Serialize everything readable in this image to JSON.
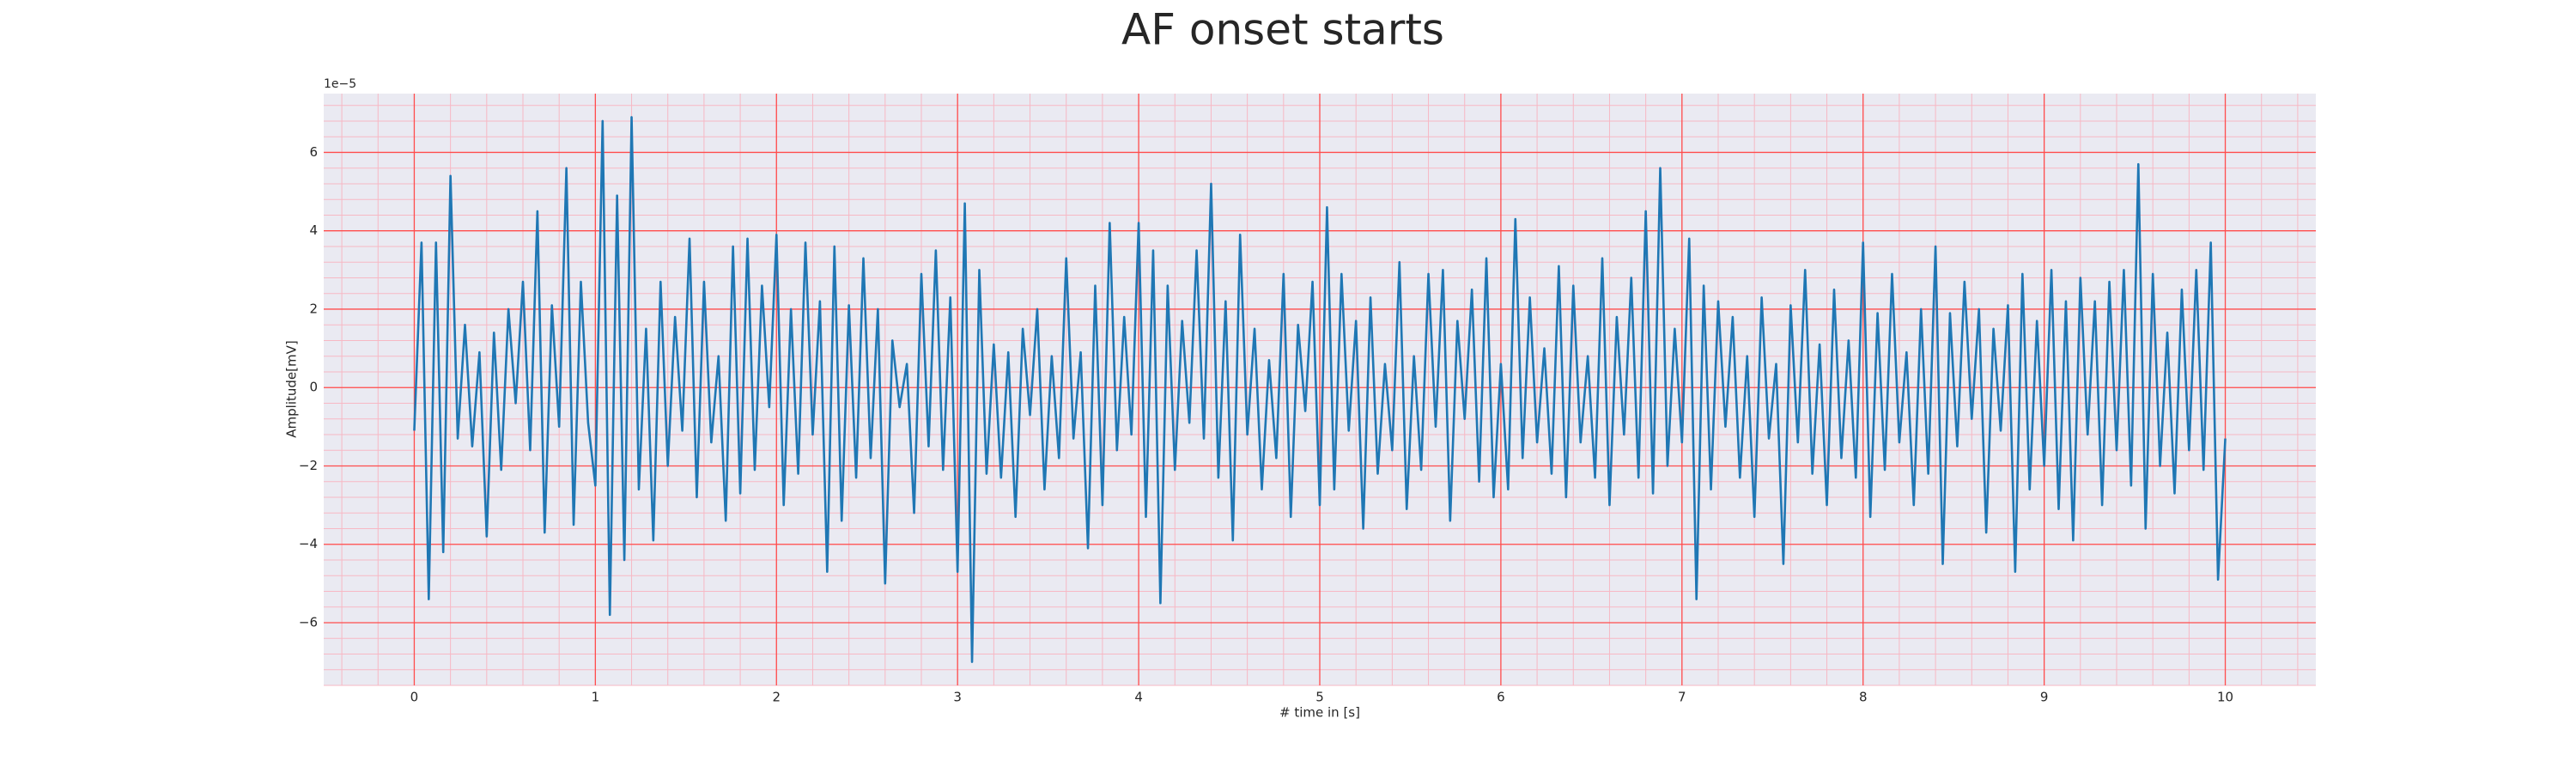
{
  "chart_data": {
    "type": "line",
    "title": "AF onset starts",
    "x_label": "# time in [s]",
    "y_label": "Amplitude[mV]",
    "y_offset_label": "1e−5",
    "grid": true,
    "minor_grid": true,
    "background": "#eaeaf2",
    "grid_color": "#ff4d4d",
    "minor_grid_color": "#f7b8c4",
    "xlim": [
      -0.5,
      10.5
    ],
    "ylim": [
      -7.6,
      7.5
    ],
    "xticks": [
      0,
      1,
      2,
      3,
      4,
      5,
      6,
      7,
      8,
      9,
      10
    ],
    "yticks": [
      {
        "value": -6,
        "label": "−6"
      },
      {
        "value": -4,
        "label": "−4"
      },
      {
        "value": -2,
        "label": "−2"
      },
      0,
      2,
      4,
      6
    ],
    "x": [
      0,
      0.04,
      0.08,
      0.12,
      0.16,
      0.2,
      0.24,
      0.28,
      0.32,
      0.36,
      0.4,
      0.44,
      0.48,
      0.52,
      0.56,
      0.6,
      0.64,
      0.68,
      0.72,
      0.76,
      0.8,
      0.84,
      0.88,
      0.92,
      0.96,
      1,
      1.04,
      1.08,
      1.12,
      1.16,
      1.2,
      1.24,
      1.28,
      1.32,
      1.36,
      1.4,
      1.44,
      1.48,
      1.52,
      1.56,
      1.6,
      1.64,
      1.68,
      1.72,
      1.76,
      1.8,
      1.84,
      1.88,
      1.92,
      1.96,
      2,
      2.04,
      2.08,
      2.12,
      2.16,
      2.2,
      2.24,
      2.28,
      2.32,
      2.36,
      2.4,
      2.44,
      2.48,
      2.52,
      2.56,
      2.6,
      2.64,
      2.68,
      2.72,
      2.76,
      2.8,
      2.84,
      2.88,
      2.92,
      2.96,
      3,
      3.04,
      3.08,
      3.12,
      3.16,
      3.2,
      3.24,
      3.28,
      3.32,
      3.36,
      3.4,
      3.44,
      3.48,
      3.52,
      3.56,
      3.6,
      3.64,
      3.68,
      3.72,
      3.76,
      3.8,
      3.84,
      3.88,
      3.92,
      3.96,
      4,
      4.04,
      4.08,
      4.12,
      4.16,
      4.2,
      4.24,
      4.28,
      4.32,
      4.36,
      4.4,
      4.44,
      4.48,
      4.52,
      4.56,
      4.6,
      4.64,
      4.68,
      4.72,
      4.76,
      4.8,
      4.84,
      4.88,
      4.92,
      4.96,
      5,
      5.04,
      5.08,
      5.12,
      5.16,
      5.2,
      5.24,
      5.28,
      5.32,
      5.36,
      5.4,
      5.44,
      5.48,
      5.52,
      5.56,
      5.6,
      5.64,
      5.68,
      5.72,
      5.76,
      5.8,
      5.84,
      5.88,
      5.92,
      5.96,
      6,
      6.04,
      6.08,
      6.12,
      6.16,
      6.2,
      6.24,
      6.28,
      6.32,
      6.36,
      6.4,
      6.44,
      6.48,
      6.52,
      6.56,
      6.6,
      6.64,
      6.68,
      6.72,
      6.76,
      6.8,
      6.84,
      6.88,
      6.92,
      6.96,
      7,
      7.04,
      7.08,
      7.12,
      7.16,
      7.2,
      7.24,
      7.28,
      7.32,
      7.36,
      7.4,
      7.44,
      7.48,
      7.52,
      7.56,
      7.6,
      7.64,
      7.68,
      7.72,
      7.76,
      7.8,
      7.84,
      7.88,
      7.92,
      7.96,
      8,
      8.04,
      8.08,
      8.12,
      8.16,
      8.2,
      8.24,
      8.28,
      8.32,
      8.36,
      8.4,
      8.44,
      8.48,
      8.52,
      8.56,
      8.6,
      8.64,
      8.68,
      8.72,
      8.76,
      8.8,
      8.84,
      8.88,
      8.92,
      8.96,
      9,
      9.04,
      9.08,
      9.12,
      9.16,
      9.2,
      9.24,
      9.28,
      9.32,
      9.36,
      9.4,
      9.44,
      9.48,
      9.52,
      9.56,
      9.6,
      9.64,
      9.68,
      9.72,
      9.76,
      9.8,
      9.84,
      9.88,
      9.92,
      9.96,
      10
    ],
    "series": [
      {
        "color": "#1f77b4",
        "values": [
          -1.1,
          3.7,
          -5.4,
          3.7,
          -4.2,
          5.4,
          -1.3,
          1.6,
          -1.5,
          0.9,
          -3.8,
          1.4,
          -2.1,
          2.0,
          -0.4,
          2.7,
          -1.6,
          4.5,
          -3.7,
          2.1,
          -1.0,
          5.6,
          -3.5,
          2.7,
          -0.9,
          -2.5,
          6.8,
          -5.8,
          4.9,
          -4.4,
          6.9,
          -2.6,
          1.5,
          -3.9,
          2.7,
          -2.0,
          1.8,
          -1.1,
          3.8,
          -2.8,
          2.7,
          -1.4,
          0.8,
          -3.4,
          3.6,
          -2.7,
          3.8,
          -2.1,
          2.6,
          -0.5,
          3.9,
          -3.0,
          2.0,
          -2.2,
          3.7,
          -1.2,
          2.2,
          -4.7,
          3.6,
          -3.4,
          2.1,
          -2.3,
          3.3,
          -1.8,
          2.0,
          -5.0,
          1.2,
          -0.5,
          0.6,
          -3.2,
          2.9,
          -1.5,
          3.5,
          -2.1,
          2.3,
          -4.7,
          4.7,
          -7.0,
          3.0,
          -2.2,
          1.1,
          -2.3,
          0.9,
          -3.3,
          1.5,
          -0.7,
          2.0,
          -2.6,
          0.8,
          -1.8,
          3.3,
          -1.3,
          0.9,
          -4.1,
          2.6,
          -3.0,
          4.2,
          -1.6,
          1.8,
          -1.2,
          4.2,
          -3.3,
          3.5,
          -5.5,
          2.6,
          -2.1,
          1.7,
          -0.9,
          3.5,
          -1.3,
          5.2,
          -2.3,
          2.2,
          -3.9,
          3.9,
          -1.2,
          1.5,
          -2.6,
          0.7,
          -1.8,
          2.9,
          -3.3,
          1.6,
          -0.6,
          2.7,
          -3.0,
          4.6,
          -2.6,
          2.9,
          -1.1,
          1.7,
          -3.6,
          2.3,
          -2.2,
          0.6,
          -1.6,
          3.2,
          -3.1,
          0.8,
          -2.1,
          2.9,
          -1.0,
          3.0,
          -3.4,
          1.7,
          -0.8,
          2.5,
          -2.4,
          3.3,
          -2.8,
          0.6,
          -2.6,
          4.3,
          -1.8,
          2.3,
          -1.4,
          1.0,
          -2.2,
          3.1,
          -2.8,
          2.6,
          -1.4,
          0.8,
          -2.3,
          3.3,
          -3.0,
          1.8,
          -1.2,
          2.8,
          -2.3,
          4.5,
          -2.7,
          5.6,
          -2.0,
          1.5,
          -1.4,
          3.8,
          -5.4,
          2.6,
          -2.6,
          2.2,
          -1.0,
          1.8,
          -2.3,
          0.8,
          -3.3,
          2.3,
          -1.3,
          0.6,
          -4.5,
          2.1,
          -1.4,
          3.0,
          -2.2,
          1.1,
          -3.0,
          2.5,
          -1.8,
          1.2,
          -2.3,
          3.7,
          -3.3,
          1.9,
          -2.1,
          2.9,
          -1.4,
          0.9,
          -3.0,
          2.0,
          -2.2,
          3.6,
          -4.5,
          1.9,
          -1.5,
          2.7,
          -0.8,
          2.0,
          -3.7,
          1.5,
          -1.1,
          2.1,
          -4.7,
          2.9,
          -2.6,
          1.7,
          -2.0,
          3.0,
          -3.1,
          2.2,
          -3.9,
          2.8,
          -1.2,
          2.2,
          -3.0,
          2.7,
          -1.6,
          3.0,
          -2.5,
          5.7,
          -3.6,
          2.9,
          -2.0,
          1.4,
          -2.7,
          2.5,
          -1.6,
          3.0,
          -2.1,
          3.7,
          -4.9,
          -1.3
        ]
      }
    ]
  }
}
